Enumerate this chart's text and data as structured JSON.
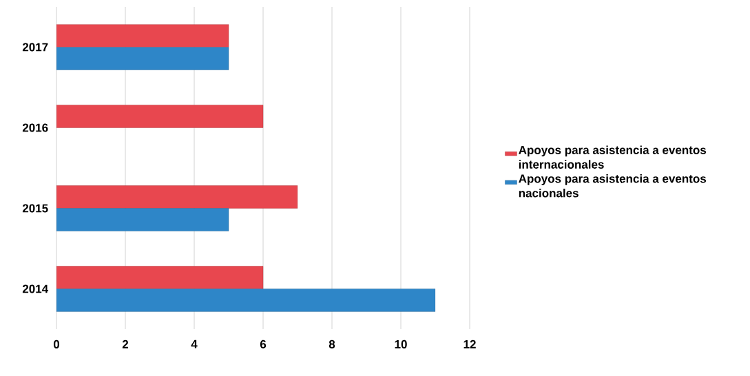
{
  "chart_data": {
    "type": "bar",
    "orientation": "horizontal",
    "categories": [
      "2017",
      "2016",
      "2015",
      "2014"
    ],
    "series": [
      {
        "name": "Apoyos para asistencia a eventos internacionales",
        "color": "#e8474f",
        "values": [
          5,
          6,
          7,
          6
        ]
      },
      {
        "name": "Apoyos para asistencia a eventos nacionales",
        "color": "#2e86c8",
        "values": [
          5,
          null,
          5,
          11
        ]
      }
    ],
    "xlim": [
      0,
      12
    ],
    "xticks": [
      0,
      2,
      4,
      6,
      8,
      10,
      12
    ],
    "grid": "x",
    "legend": "right"
  }
}
